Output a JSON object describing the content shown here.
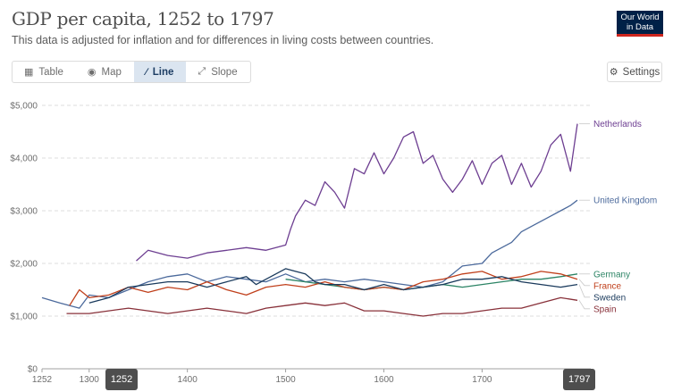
{
  "header": {
    "title": "GDP per capita, 1252 to 1797",
    "subtitle": "This data is adjusted for inflation and for differences in living costs between countries.",
    "logo_line1": "Our World",
    "logo_line2": "in Data"
  },
  "tabs": [
    {
      "label": "Table",
      "icon": "table-icon"
    },
    {
      "label": "Map",
      "icon": "globe-icon"
    },
    {
      "label": "Line",
      "icon": "line-chart-icon",
      "active": true
    },
    {
      "label": "Slope",
      "icon": "slope-icon"
    }
  ],
  "settings_label": "Settings",
  "timeline": {
    "start_label": "1252",
    "end_label": "1797"
  },
  "chart_data": {
    "type": "line",
    "x_range": [
      1252,
      1797
    ],
    "ylim": [
      0,
      5000
    ],
    "y_ticks": [
      {
        "value": 0,
        "label": "$0"
      },
      {
        "value": 1000,
        "label": "$1,000"
      },
      {
        "value": 2000,
        "label": "$2,000"
      },
      {
        "value": 3000,
        "label": "$3,000"
      },
      {
        "value": 4000,
        "label": "$4,000"
      },
      {
        "value": 5000,
        "label": "$5,000"
      }
    ],
    "x_ticks": [
      1252,
      1300,
      1400,
      1500,
      1600,
      1700,
      1797
    ],
    "grid": true,
    "series": [
      {
        "name": "Netherlands",
        "color": "#6d3e91",
        "points": [
          [
            1348,
            2050
          ],
          [
            1360,
            2250
          ],
          [
            1380,
            2150
          ],
          [
            1400,
            2100
          ],
          [
            1420,
            2200
          ],
          [
            1440,
            2250
          ],
          [
            1460,
            2300
          ],
          [
            1480,
            2250
          ],
          [
            1500,
            2350
          ],
          [
            1505,
            2650
          ],
          [
            1510,
            2900
          ],
          [
            1520,
            3200
          ],
          [
            1530,
            3100
          ],
          [
            1540,
            3550
          ],
          [
            1550,
            3350
          ],
          [
            1560,
            3050
          ],
          [
            1570,
            3800
          ],
          [
            1580,
            3700
          ],
          [
            1590,
            4100
          ],
          [
            1600,
            3700
          ],
          [
            1610,
            4000
          ],
          [
            1620,
            4400
          ],
          [
            1630,
            4500
          ],
          [
            1640,
            3900
          ],
          [
            1650,
            4050
          ],
          [
            1660,
            3600
          ],
          [
            1670,
            3350
          ],
          [
            1680,
            3600
          ],
          [
            1690,
            3950
          ],
          [
            1700,
            3500
          ],
          [
            1710,
            3900
          ],
          [
            1720,
            4050
          ],
          [
            1730,
            3500
          ],
          [
            1740,
            3900
          ],
          [
            1750,
            3450
          ],
          [
            1760,
            3750
          ],
          [
            1770,
            4250
          ],
          [
            1780,
            4450
          ],
          [
            1790,
            3750
          ],
          [
            1797,
            4650
          ]
        ]
      },
      {
        "name": "United Kingdom",
        "color": "#4c6a9c",
        "points": [
          [
            1252,
            1350
          ],
          [
            1270,
            1250
          ],
          [
            1290,
            1150
          ],
          [
            1300,
            1400
          ],
          [
            1320,
            1350
          ],
          [
            1340,
            1500
          ],
          [
            1360,
            1650
          ],
          [
            1380,
            1750
          ],
          [
            1400,
            1800
          ],
          [
            1420,
            1650
          ],
          [
            1440,
            1750
          ],
          [
            1460,
            1700
          ],
          [
            1480,
            1650
          ],
          [
            1500,
            1800
          ],
          [
            1520,
            1650
          ],
          [
            1540,
            1700
          ],
          [
            1560,
            1650
          ],
          [
            1580,
            1700
          ],
          [
            1600,
            1650
          ],
          [
            1620,
            1600
          ],
          [
            1640,
            1550
          ],
          [
            1660,
            1650
          ],
          [
            1680,
            1950
          ],
          [
            1700,
            2000
          ],
          [
            1710,
            2200
          ],
          [
            1720,
            2300
          ],
          [
            1730,
            2400
          ],
          [
            1740,
            2600
          ],
          [
            1750,
            2700
          ],
          [
            1760,
            2800
          ],
          [
            1770,
            2900
          ],
          [
            1780,
            3000
          ],
          [
            1790,
            3100
          ],
          [
            1797,
            3200
          ]
        ]
      },
      {
        "name": "Germany",
        "color": "#2c8465",
        "points": [
          [
            1500,
            1700
          ],
          [
            1520,
            1650
          ],
          [
            1540,
            1600
          ],
          [
            1560,
            1550
          ],
          [
            1580,
            1500
          ],
          [
            1600,
            1550
          ],
          [
            1620,
            1500
          ],
          [
            1640,
            1550
          ],
          [
            1660,
            1600
          ],
          [
            1680,
            1550
          ],
          [
            1700,
            1600
          ],
          [
            1720,
            1650
          ],
          [
            1740,
            1700
          ],
          [
            1760,
            1700
          ],
          [
            1780,
            1750
          ],
          [
            1797,
            1800
          ]
        ]
      },
      {
        "name": "France",
        "color": "#c0401c",
        "points": [
          [
            1280,
            1200
          ],
          [
            1290,
            1500
          ],
          [
            1300,
            1350
          ],
          [
            1320,
            1400
          ],
          [
            1340,
            1550
          ],
          [
            1360,
            1450
          ],
          [
            1380,
            1550
          ],
          [
            1400,
            1500
          ],
          [
            1420,
            1650
          ],
          [
            1440,
            1500
          ],
          [
            1460,
            1400
          ],
          [
            1480,
            1550
          ],
          [
            1500,
            1600
          ],
          [
            1520,
            1550
          ],
          [
            1540,
            1650
          ],
          [
            1560,
            1550
          ],
          [
            1580,
            1500
          ],
          [
            1600,
            1550
          ],
          [
            1620,
            1500
          ],
          [
            1640,
            1650
          ],
          [
            1660,
            1700
          ],
          [
            1680,
            1800
          ],
          [
            1700,
            1850
          ],
          [
            1720,
            1700
          ],
          [
            1740,
            1750
          ],
          [
            1760,
            1850
          ],
          [
            1780,
            1800
          ],
          [
            1797,
            1700
          ]
        ]
      },
      {
        "name": "Sweden",
        "color": "#1a3a5c",
        "points": [
          [
            1300,
            1250
          ],
          [
            1320,
            1350
          ],
          [
            1340,
            1550
          ],
          [
            1360,
            1600
          ],
          [
            1380,
            1650
          ],
          [
            1400,
            1650
          ],
          [
            1420,
            1550
          ],
          [
            1440,
            1650
          ],
          [
            1460,
            1750
          ],
          [
            1470,
            1600
          ],
          [
            1490,
            1800
          ],
          [
            1500,
            1900
          ],
          [
            1510,
            1850
          ],
          [
            1520,
            1800
          ],
          [
            1530,
            1650
          ],
          [
            1540,
            1600
          ],
          [
            1560,
            1600
          ],
          [
            1580,
            1500
          ],
          [
            1600,
            1600
          ],
          [
            1620,
            1500
          ],
          [
            1640,
            1550
          ],
          [
            1660,
            1600
          ],
          [
            1680,
            1700
          ],
          [
            1700,
            1700
          ],
          [
            1720,
            1750
          ],
          [
            1740,
            1650
          ],
          [
            1760,
            1600
          ],
          [
            1780,
            1550
          ],
          [
            1797,
            1600
          ]
        ]
      },
      {
        "name": "Spain",
        "color": "#883039",
        "points": [
          [
            1277,
            1050
          ],
          [
            1300,
            1050
          ],
          [
            1340,
            1150
          ],
          [
            1360,
            1100
          ],
          [
            1380,
            1050
          ],
          [
            1400,
            1100
          ],
          [
            1420,
            1150
          ],
          [
            1440,
            1100
          ],
          [
            1460,
            1050
          ],
          [
            1480,
            1150
          ],
          [
            1500,
            1200
          ],
          [
            1520,
            1250
          ],
          [
            1540,
            1200
          ],
          [
            1560,
            1250
          ],
          [
            1580,
            1100
          ],
          [
            1600,
            1100
          ],
          [
            1620,
            1050
          ],
          [
            1640,
            1000
          ],
          [
            1660,
            1050
          ],
          [
            1680,
            1050
          ],
          [
            1700,
            1100
          ],
          [
            1720,
            1150
          ],
          [
            1740,
            1150
          ],
          [
            1760,
            1250
          ],
          [
            1780,
            1350
          ],
          [
            1797,
            1300
          ]
        ]
      }
    ]
  }
}
